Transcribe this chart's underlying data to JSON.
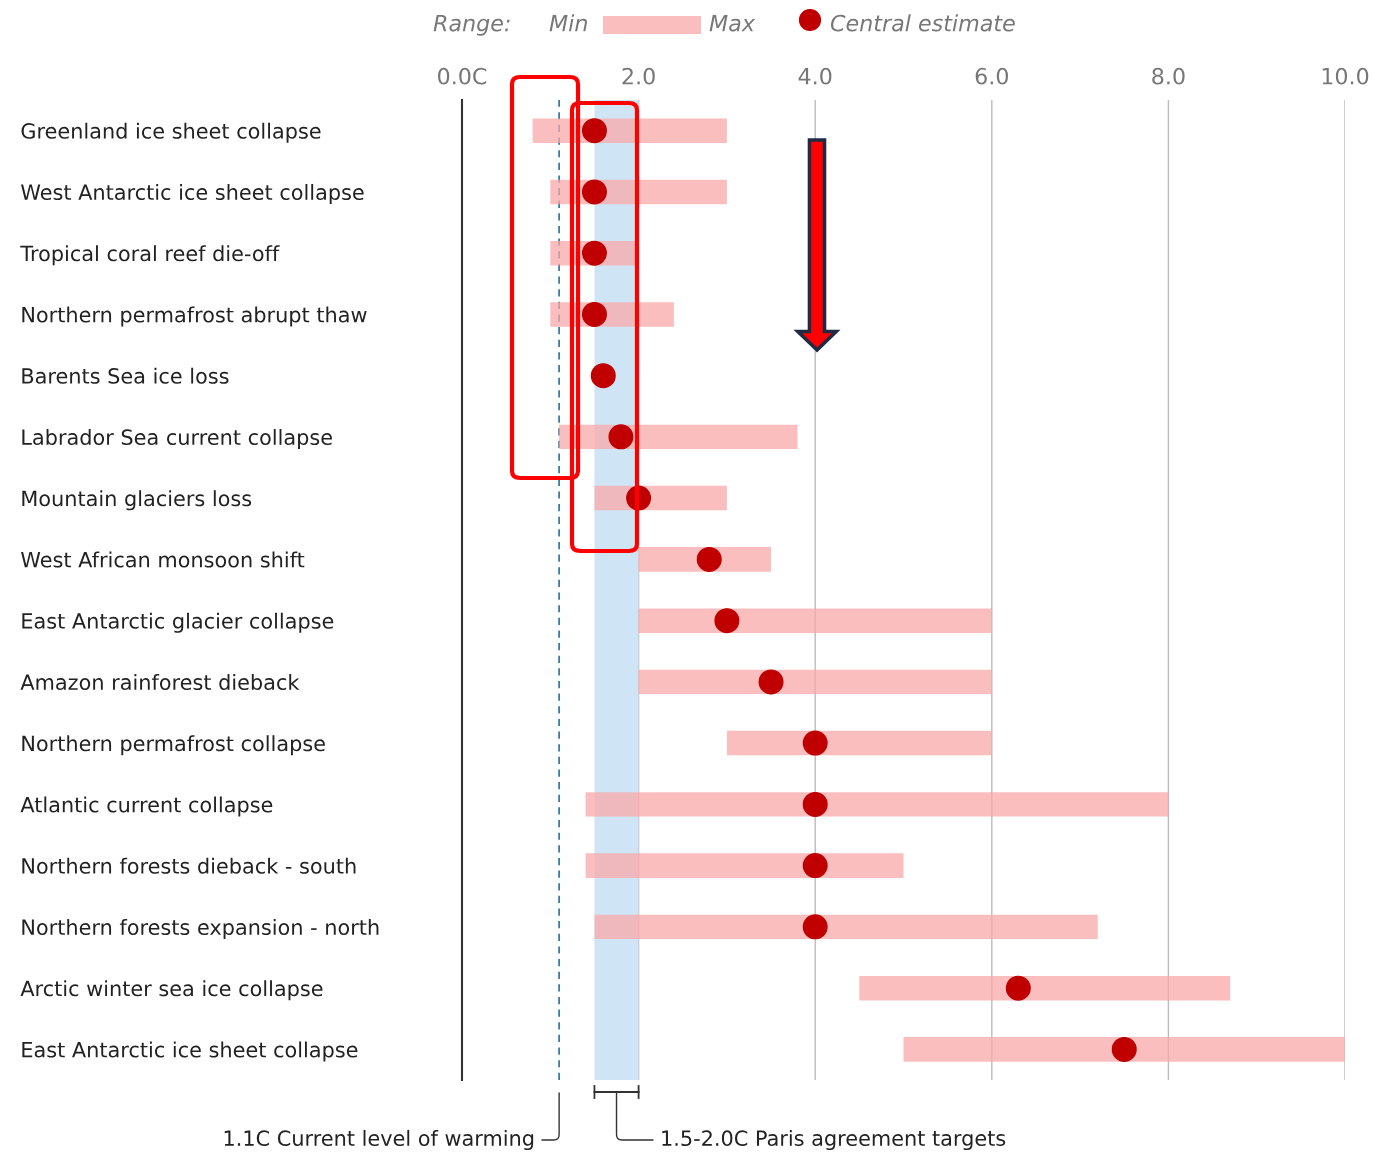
{
  "chart_data": {
    "type": "bar",
    "orientation": "horizontal",
    "categories": [
      "Greenland ice sheet collapse",
      "West Antarctic ice sheet collapse",
      "Tropical coral reef die-off",
      "Northern permafrost abrupt thaw",
      "Barents Sea ice loss",
      "Labrador Sea current collapse",
      "Mountain glaciers loss",
      "West African monsoon shift",
      "East Antarctic glacier collapse",
      "Amazon rainforest dieback",
      "Northern permafrost collapse",
      "Atlantic current collapse",
      "Northern forests dieback - south",
      "Northern forests expansion - north",
      "Arctic winter sea ice collapse",
      "East Antarctic ice sheet collapse"
    ],
    "legend_title": "Range:",
    "series": [
      {
        "color": "#f9a8a8",
        "base": [
          0.8,
          1.0,
          1.0,
          1.0,
          null,
          1.1,
          1.5,
          2.0,
          2.0,
          2.0,
          3.0,
          1.4,
          1.4,
          1.5,
          4.5,
          5.0
        ],
        "values": [
          2.2,
          2.0,
          1.0,
          1.4,
          null,
          2.7,
          1.5,
          1.5,
          4.0,
          4.0,
          3.0,
          6.6,
          3.6,
          5.7,
          4.2,
          5.0
        ]
      },
      {
        "type": "scatter",
        "name": "Central estimate",
        "color": "#c00000",
        "marker": "circle",
        "values": [
          1.5,
          1.5,
          1.5,
          1.5,
          1.6,
          1.8,
          2.0,
          2.8,
          3.0,
          3.5,
          4.0,
          4.0,
          4.0,
          4.0,
          6.3,
          7.5
        ]
      }
    ],
    "annotations": [
      "Min",
      "Max"
    ],
    "xlim": [
      0,
      10
    ],
    "xticks": [
      {
        "value": 0,
        "label": "0.0C"
      },
      {
        "value": 2,
        "label": "2.0"
      },
      {
        "value": 4,
        "label": "4.0"
      },
      {
        "value": 6,
        "label": "6.0"
      },
      {
        "value": 8,
        "label": "8.0"
      },
      {
        "value": 10,
        "label": "10.0"
      }
    ],
    "grid": "x",
    "legend": "top",
    "ref_lines": [
      {
        "axis": "x",
        "value": 1.1,
        "label": "1.1C Current level of warming",
        "color": "#3a7ca5",
        "line_style": "dashed"
      }
    ],
    "bands": [
      {
        "axis": "x",
        "from": 1.5,
        "to": 2.0,
        "label": "1.5-2.0C Paris agreement targets",
        "color": "#cfe5f5"
      }
    ]
  }
}
